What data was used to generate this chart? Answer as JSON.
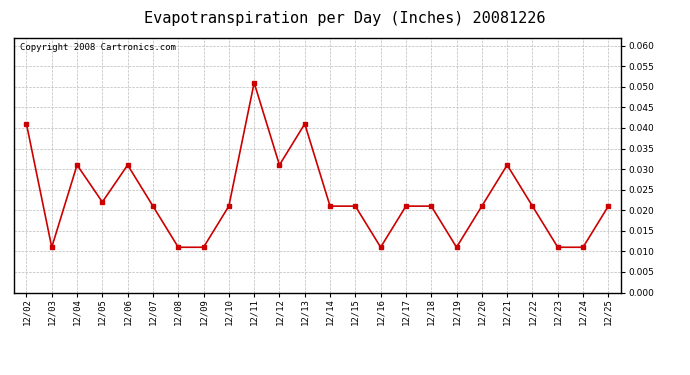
{
  "title": "Evapotranspiration per Day (Inches) 20081226",
  "copyright_text": "Copyright 2008 Cartronics.com",
  "dates": [
    "12/02",
    "12/03",
    "12/04",
    "12/05",
    "12/06",
    "12/07",
    "12/08",
    "12/09",
    "12/10",
    "12/11",
    "12/12",
    "12/13",
    "12/14",
    "12/15",
    "12/16",
    "12/17",
    "12/18",
    "12/19",
    "12/20",
    "12/21",
    "12/22",
    "12/23",
    "12/24",
    "12/25"
  ],
  "values": [
    0.041,
    0.011,
    0.031,
    0.022,
    0.031,
    0.021,
    0.011,
    0.011,
    0.021,
    0.051,
    0.031,
    0.041,
    0.021,
    0.021,
    0.011,
    0.021,
    0.021,
    0.011,
    0.021,
    0.031,
    0.021,
    0.011,
    0.011,
    0.021
  ],
  "ylim": [
    0.0,
    0.062
  ],
  "yticks": [
    0.0,
    0.005,
    0.01,
    0.015,
    0.02,
    0.025,
    0.03,
    0.035,
    0.04,
    0.045,
    0.05,
    0.055,
    0.06
  ],
  "line_color": "#cc0000",
  "marker": "s",
  "marker_size": 3,
  "background_color": "#ffffff",
  "grid_color": "#bbbbbb",
  "title_fontsize": 11,
  "copyright_fontsize": 6.5,
  "tick_fontsize": 6.5
}
